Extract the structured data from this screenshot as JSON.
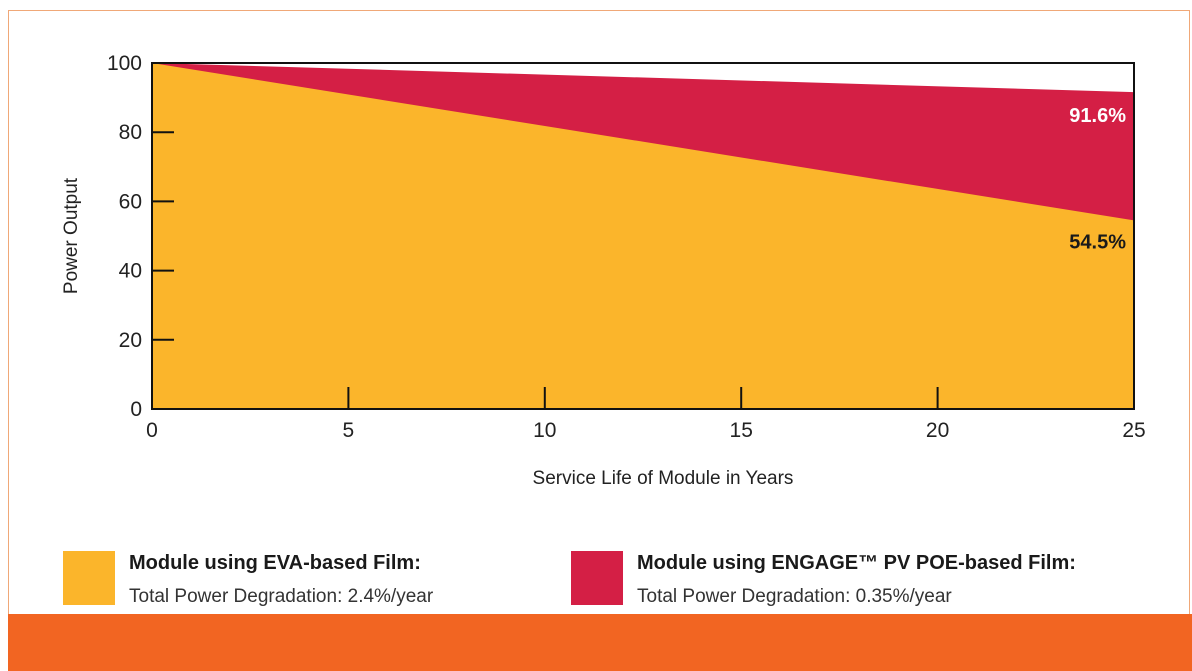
{
  "chart_data": {
    "type": "area",
    "title": "",
    "xlabel": "Service Life of Module in Years",
    "ylabel": "Power Output",
    "xlim": [
      0,
      25
    ],
    "ylim": [
      0,
      100
    ],
    "x_ticks": [
      0,
      5,
      10,
      15,
      20,
      25
    ],
    "y_ticks": [
      0,
      20,
      40,
      60,
      80,
      100
    ],
    "grid": false,
    "x": [
      0,
      25
    ],
    "series": [
      {
        "name": "Module using ENGAGE™ PV POE-based Film:",
        "values": [
          100,
          91.6
        ],
        "color": "#d41f45",
        "end_label": "91.6%",
        "legend_sub": "Total Power Degradation: 0.35%/year"
      },
      {
        "name": "Module using EVA-based Film:",
        "values": [
          100,
          54.5
        ],
        "color": "#fbb52b",
        "end_label": "54.5%",
        "legend_sub": "Total Power Degradation: 2.4%/year"
      }
    ]
  },
  "colors": {
    "accent_band": "#f26522",
    "card_border": "#f0a878"
  }
}
